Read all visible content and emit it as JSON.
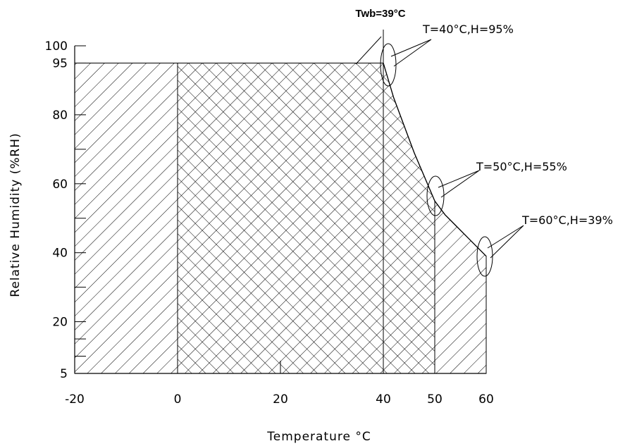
{
  "chart_data": {
    "type": "area",
    "title": "",
    "xlabel": "Temperature °C",
    "ylabel": "Relative Humidity (%RH)",
    "xlim": [
      -20,
      60
    ],
    "ylim": [
      5,
      100
    ],
    "x_ticks": [
      -20,
      0,
      20,
      40,
      50,
      60
    ],
    "y_ticks": [
      5,
      20,
      40,
      60,
      80,
      95,
      100
    ],
    "x_tick_labels": [
      "-20",
      "0",
      "20",
      "40",
      "50",
      "60"
    ],
    "y_tick_labels": [
      "5",
      "20",
      "40",
      "60",
      "80",
      "95",
      "100"
    ],
    "boundary_curve": [
      {
        "x": 40,
        "y": 95
      },
      {
        "x": 42,
        "y": 85
      },
      {
        "x": 44,
        "y": 77
      },
      {
        "x": 46,
        "y": 69
      },
      {
        "x": 48,
        "y": 62
      },
      {
        "x": 50,
        "y": 55
      },
      {
        "x": 52,
        "y": 51
      },
      {
        "x": 54,
        "y": 48
      },
      {
        "x": 56,
        "y": 45
      },
      {
        "x": 58,
        "y": 42
      },
      {
        "x": 60,
        "y": 39
      }
    ],
    "regions": [
      {
        "hatch": "single",
        "x_range": [
          -20,
          0
        ],
        "y_range": [
          5,
          95
        ]
      },
      {
        "hatch": "cross",
        "x_range": [
          0,
          50
        ],
        "y_range": [
          5,
          95
        ],
        "bounded_by": "boundary_curve"
      },
      {
        "hatch": "single",
        "x_range": [
          50,
          60
        ],
        "y_range": [
          5,
          55
        ],
        "bounded_by": "boundary_curve"
      }
    ],
    "annotations": [
      {
        "text": "Twb=39°C",
        "x": 40
      },
      {
        "text": "T=40°C,H=95%",
        "x": 40,
        "y": 95
      },
      {
        "text": "T=50°C,H=55%",
        "x": 50,
        "y": 55
      },
      {
        "text": "T=60°C,H=39%",
        "x": 60,
        "y": 39
      }
    ],
    "grid": false
  }
}
